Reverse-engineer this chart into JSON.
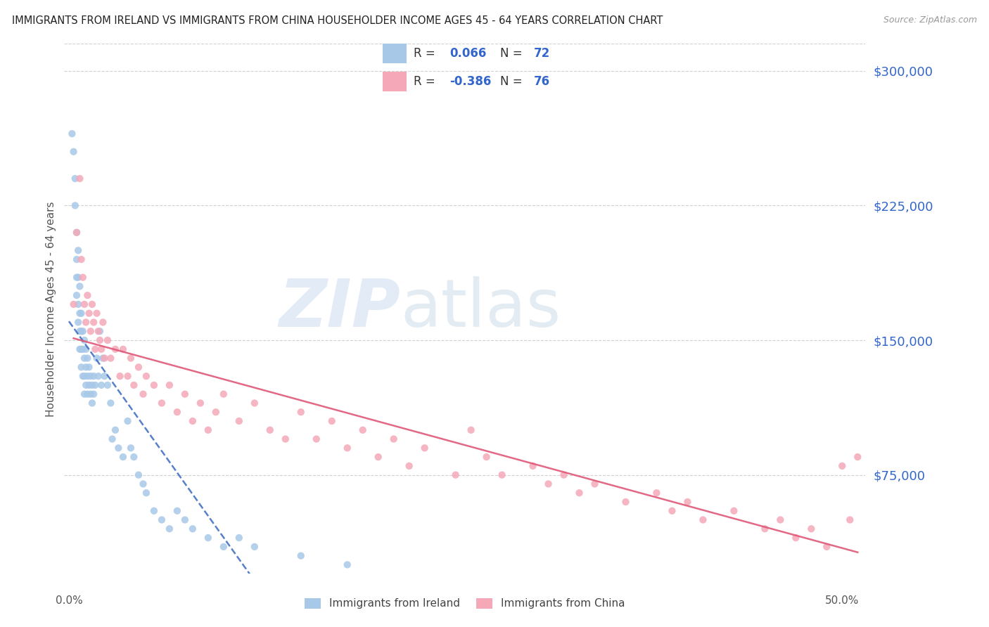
{
  "title": "IMMIGRANTS FROM IRELAND VS IMMIGRANTS FROM CHINA HOUSEHOLDER INCOME AGES 45 - 64 YEARS CORRELATION CHART",
  "source": "Source: ZipAtlas.com",
  "ylabel": "Householder Income Ages 45 - 64 years",
  "background_color": "#ffffff",
  "grid_color": "#cccccc",
  "ireland_color": "#a8c8e8",
  "ireland_line_color": "#4472c4",
  "china_color": "#f4a8b8",
  "china_line_color": "#e05878",
  "ireland_R": 0.066,
  "ireland_N": 72,
  "china_R": -0.386,
  "china_N": 76,
  "yticks": [
    75000,
    150000,
    225000,
    300000
  ],
  "ytick_labels": [
    "$75,000",
    "$150,000",
    "$225,000",
    "$300,000"
  ],
  "ymin": 20000,
  "ymax": 315000,
  "xmin": -0.003,
  "xmax": 0.515,
  "ireland_scatter_x": [
    0.002,
    0.003,
    0.004,
    0.004,
    0.005,
    0.005,
    0.005,
    0.005,
    0.006,
    0.006,
    0.006,
    0.006,
    0.007,
    0.007,
    0.007,
    0.007,
    0.008,
    0.008,
    0.008,
    0.008,
    0.009,
    0.009,
    0.009,
    0.01,
    0.01,
    0.01,
    0.01,
    0.011,
    0.011,
    0.011,
    0.012,
    0.012,
    0.012,
    0.013,
    0.013,
    0.014,
    0.014,
    0.015,
    0.015,
    0.016,
    0.016,
    0.017,
    0.018,
    0.019,
    0.02,
    0.021,
    0.022,
    0.023,
    0.025,
    0.027,
    0.028,
    0.03,
    0.032,
    0.035,
    0.038,
    0.04,
    0.042,
    0.045,
    0.048,
    0.05,
    0.055,
    0.06,
    0.065,
    0.07,
    0.075,
    0.08,
    0.09,
    0.1,
    0.11,
    0.12,
    0.15,
    0.18
  ],
  "ireland_scatter_y": [
    265000,
    255000,
    240000,
    225000,
    210000,
    195000,
    185000,
    175000,
    200000,
    185000,
    170000,
    160000,
    180000,
    165000,
    155000,
    145000,
    165000,
    155000,
    145000,
    135000,
    155000,
    145000,
    130000,
    150000,
    140000,
    130000,
    120000,
    145000,
    135000,
    125000,
    140000,
    130000,
    120000,
    135000,
    125000,
    130000,
    120000,
    125000,
    115000,
    130000,
    120000,
    125000,
    140000,
    130000,
    155000,
    125000,
    140000,
    130000,
    125000,
    115000,
    95000,
    100000,
    90000,
    85000,
    105000,
    90000,
    85000,
    75000,
    70000,
    65000,
    55000,
    50000,
    45000,
    55000,
    50000,
    45000,
    40000,
    35000,
    40000,
    35000,
    30000,
    25000
  ],
  "china_scatter_x": [
    0.003,
    0.005,
    0.007,
    0.008,
    0.009,
    0.01,
    0.011,
    0.012,
    0.013,
    0.014,
    0.015,
    0.016,
    0.017,
    0.018,
    0.019,
    0.02,
    0.021,
    0.022,
    0.023,
    0.025,
    0.027,
    0.03,
    0.033,
    0.035,
    0.038,
    0.04,
    0.042,
    0.045,
    0.048,
    0.05,
    0.055,
    0.06,
    0.065,
    0.07,
    0.075,
    0.08,
    0.085,
    0.09,
    0.095,
    0.1,
    0.11,
    0.12,
    0.13,
    0.14,
    0.15,
    0.16,
    0.17,
    0.18,
    0.19,
    0.2,
    0.21,
    0.22,
    0.23,
    0.25,
    0.26,
    0.27,
    0.28,
    0.3,
    0.31,
    0.32,
    0.33,
    0.34,
    0.36,
    0.38,
    0.39,
    0.4,
    0.41,
    0.43,
    0.45,
    0.46,
    0.47,
    0.48,
    0.49,
    0.5,
    0.505,
    0.51
  ],
  "china_scatter_y": [
    170000,
    210000,
    240000,
    195000,
    185000,
    170000,
    160000,
    175000,
    165000,
    155000,
    170000,
    160000,
    145000,
    165000,
    155000,
    150000,
    145000,
    160000,
    140000,
    150000,
    140000,
    145000,
    130000,
    145000,
    130000,
    140000,
    125000,
    135000,
    120000,
    130000,
    125000,
    115000,
    125000,
    110000,
    120000,
    105000,
    115000,
    100000,
    110000,
    120000,
    105000,
    115000,
    100000,
    95000,
    110000,
    95000,
    105000,
    90000,
    100000,
    85000,
    95000,
    80000,
    90000,
    75000,
    100000,
    85000,
    75000,
    80000,
    70000,
    75000,
    65000,
    70000,
    60000,
    65000,
    55000,
    60000,
    50000,
    55000,
    45000,
    50000,
    40000,
    45000,
    35000,
    80000,
    50000,
    85000
  ]
}
